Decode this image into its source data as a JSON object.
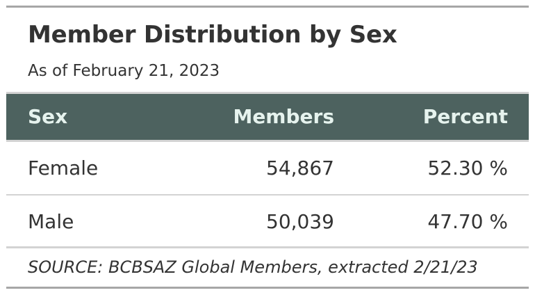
{
  "chart_data": {
    "type": "table",
    "title": "Member Distribution by Sex",
    "subtitle": "As of February 21, 2023",
    "columns": [
      "Sex",
      "Members",
      "Percent"
    ],
    "rows": [
      {
        "sex": "Female",
        "members": "54,867",
        "percent": "52.30 %"
      },
      {
        "sex": "Male",
        "members": "50,039",
        "percent": "47.70 %"
      }
    ],
    "values": [
      {
        "sex": "Female",
        "members": 54867,
        "percent": 52.3
      },
      {
        "sex": "Male",
        "members": 50039,
        "percent": 47.7
      }
    ],
    "source_note": "SOURCE: BCBSAZ Global Members, extracted 2/21/23"
  },
  "colors": {
    "header_background": "#4d625f",
    "header_text": "#e6f3ee",
    "body_text": "#333333",
    "rule": "#a6a6a6",
    "row_divider": "#d3d3d3"
  }
}
